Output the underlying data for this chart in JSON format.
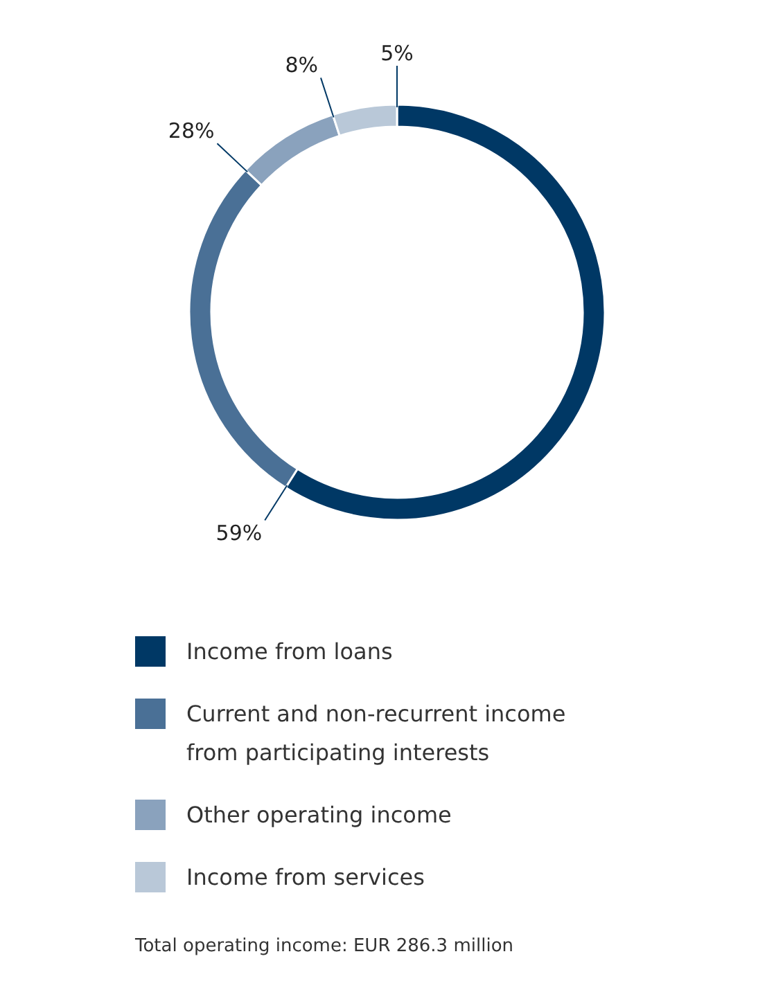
{
  "chart_data": {
    "type": "donut",
    "categories": [
      "Income from loans",
      "Current and non-recurrent income from participating interests",
      "Other operating income",
      "Income from services"
    ],
    "values": [
      59,
      28,
      8,
      5
    ],
    "colors": [
      "#003865",
      "#4a7096",
      "#8aa2bd",
      "#b9c8d8"
    ],
    "value_labels": [
      "59%",
      "28%",
      "8%",
      "5%"
    ],
    "legend": "bottom",
    "annotations": [
      "Total operating income: EUR 286.3 million"
    ]
  }
}
